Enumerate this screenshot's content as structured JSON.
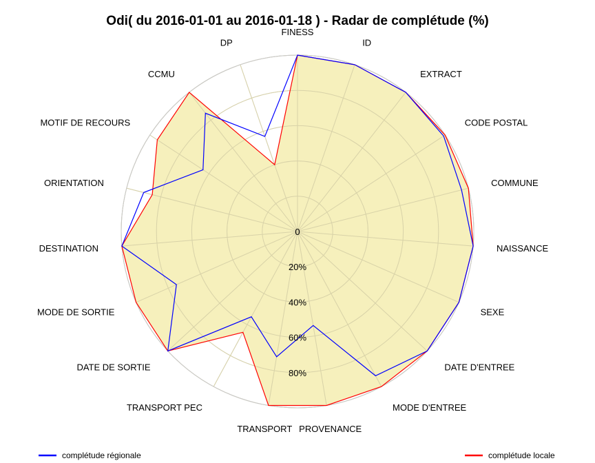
{
  "chart_data": {
    "type": "radar",
    "title": "Odi( du 2016-01-01 au 2016-01-18 ) - Radar de complétude (%)",
    "categories": [
      "FINESS",
      "ID",
      "EXTRACT",
      "CODE POSTAL",
      "COMMUNE",
      "NAISSANCE",
      "SEXE",
      "DATE D'ENTREE",
      "MODE D'ENTREE",
      "PROVENANCE",
      "TRANSPORT",
      "TRANSPORT PEC",
      "DATE DE SORTIE",
      "MODE DE SORTIE",
      "DESTINATION",
      "ORIENTATION",
      "MOTIF DE RECOURS",
      "CCMU",
      "DP"
    ],
    "radial_range": [
      0,
      100
    ],
    "radial_ticks": [
      0,
      20,
      40,
      60,
      80
    ],
    "radial_tick_labels": [
      "0",
      "20%",
      "40%",
      "60%",
      "80%"
    ],
    "grid": true,
    "legend_position": "bottom",
    "series": [
      {
        "name": "complétude régionale",
        "color": "#0000ff",
        "values": [
          100,
          100,
          100,
          99,
          96,
          100,
          100,
          100,
          93,
          54,
          72,
          55,
          100,
          75,
          100,
          90,
          64,
          85,
          57
        ],
        "filled": false
      },
      {
        "name": "complétude locale",
        "color": "#ff0000",
        "fill": "#f5eeb5",
        "values": [
          100,
          100,
          100,
          100,
          100,
          100,
          100,
          100,
          100,
          100,
          100,
          65,
          100,
          100,
          100,
          85,
          95,
          100,
          40
        ],
        "filled": true
      }
    ]
  }
}
